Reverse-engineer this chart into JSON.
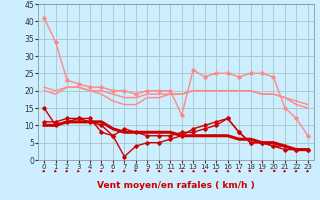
{
  "title": "",
  "xlabel": "Vent moyen/en rafales ( km/h )",
  "background_color": "#cceeff",
  "grid_color": "#aacccc",
  "xlim": [
    -0.5,
    23.5
  ],
  "ylim": [
    0,
    45
  ],
  "yticks": [
    0,
    5,
    10,
    15,
    20,
    25,
    30,
    35,
    40,
    45
  ],
  "xticks": [
    0,
    1,
    2,
    3,
    4,
    5,
    6,
    7,
    8,
    9,
    10,
    11,
    12,
    13,
    14,
    15,
    16,
    17,
    18,
    19,
    20,
    21,
    22,
    23
  ],
  "series_light": [
    {
      "x": [
        0,
        1,
        2,
        3,
        4,
        5,
        6,
        7,
        8,
        9,
        10,
        11,
        12,
        13,
        14,
        15,
        16,
        17,
        18,
        19,
        20,
        21,
        22,
        23
      ],
      "y": [
        41,
        34,
        23,
        22,
        21,
        21,
        20,
        20,
        19,
        20,
        20,
        20,
        13,
        26,
        24,
        25,
        25,
        24,
        25,
        25,
        24,
        15,
        12,
        7
      ],
      "color": "#ff8888",
      "lw": 1.0,
      "marker": "D",
      "ms": 1.8
    },
    {
      "x": [
        0,
        1,
        2,
        3,
        4,
        5,
        6,
        7,
        8,
        9,
        10,
        11,
        12,
        13,
        14,
        15,
        16,
        17,
        18,
        19,
        20,
        21,
        22,
        23
      ],
      "y": [
        21,
        20,
        21,
        21,
        20,
        20,
        19,
        18,
        18,
        19,
        19,
        19,
        19,
        20,
        20,
        20,
        20,
        20,
        20,
        19,
        19,
        18,
        17,
        16
      ],
      "color": "#ff8888",
      "lw": 1.0,
      "marker": null,
      "ms": 0
    },
    {
      "x": [
        0,
        1,
        2,
        3,
        4,
        5,
        6,
        7,
        8,
        9,
        10,
        11,
        12,
        13,
        14,
        15,
        16,
        17,
        18,
        19,
        20,
        21,
        22,
        23
      ],
      "y": [
        20,
        19,
        21,
        21,
        20,
        19,
        17,
        16,
        16,
        18,
        18,
        19,
        19,
        20,
        20,
        20,
        20,
        20,
        20,
        19,
        19,
        18,
        16,
        15
      ],
      "color": "#ff8888",
      "lw": 1.0,
      "marker": null,
      "ms": 0
    }
  ],
  "series_dark": [
    {
      "x": [
        0,
        1,
        2,
        3,
        4,
        5,
        6,
        7,
        8,
        9,
        10,
        11,
        12,
        13,
        14,
        15,
        16,
        17,
        18,
        19,
        20,
        21,
        22,
        23
      ],
      "y": [
        15,
        10,
        11,
        12,
        11,
        10,
        7,
        1,
        4,
        5,
        5,
        6,
        7,
        9,
        10,
        11,
        12,
        8,
        5,
        5,
        4,
        3,
        3,
        3
      ],
      "color": "#cc0000",
      "lw": 1.0,
      "marker": "D",
      "ms": 1.8
    },
    {
      "x": [
        0,
        1,
        2,
        3,
        4,
        5,
        6,
        7,
        8,
        9,
        10,
        11,
        12,
        13,
        14,
        15,
        16,
        17,
        18,
        19,
        20,
        21,
        22,
        23
      ],
      "y": [
        10,
        10,
        11,
        11,
        11,
        11,
        9,
        8,
        8,
        8,
        8,
        8,
        7,
        7,
        7,
        7,
        7,
        6,
        6,
        5,
        5,
        4,
        3,
        3
      ],
      "color": "#cc0000",
      "lw": 2.2,
      "marker": null,
      "ms": 0
    },
    {
      "x": [
        0,
        1,
        2,
        3,
        4,
        5,
        6,
        7,
        8,
        9,
        10,
        11,
        12,
        13,
        14,
        15,
        16,
        17,
        18,
        19,
        20,
        21,
        22,
        23
      ],
      "y": [
        11,
        11,
        12,
        12,
        12,
        8,
        7,
        9,
        8,
        7,
        7,
        7,
        8,
        8,
        9,
        10,
        12,
        8,
        5,
        5,
        4,
        4,
        3,
        3
      ],
      "color": "#cc0000",
      "lw": 1.0,
      "marker": "D",
      "ms": 1.8
    }
  ],
  "xlabel_fontsize": 6.5,
  "ytick_fontsize": 5.5,
  "xtick_fontsize": 5.0,
  "arrow_angles": [
    225,
    225,
    225,
    225,
    225,
    225,
    225,
    225,
    315,
    45,
    135,
    135,
    135,
    135,
    135,
    135,
    135,
    135,
    270,
    270,
    90,
    225,
    225,
    225
  ]
}
